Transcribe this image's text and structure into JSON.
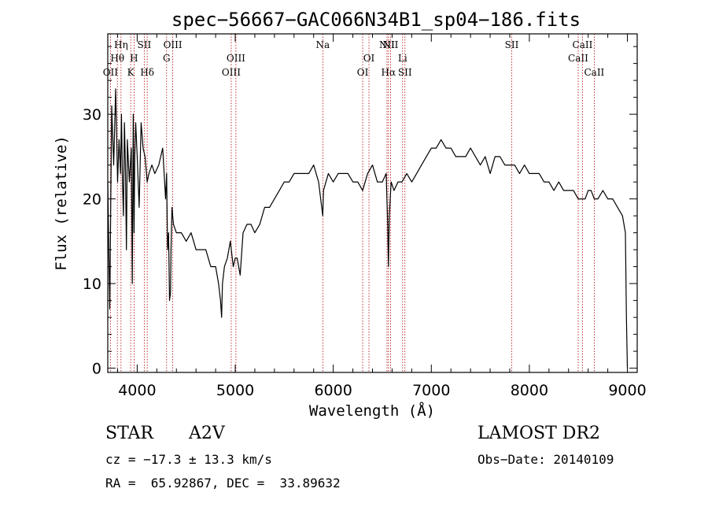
{
  "chart_data": {
    "type": "line",
    "title": "spec−56667−GAC066N34B1_sp04−186.fits",
    "xlabel": "Wavelength (Å)",
    "ylabel": "Flux (relative)",
    "xlim": [
      3700,
      9100
    ],
    "ylim": [
      -0.5,
      39.5
    ],
    "xticks": [
      4000,
      5000,
      6000,
      7000,
      8000,
      9000
    ],
    "yticks": [
      0,
      10,
      20,
      30
    ],
    "grid": false,
    "series": [
      {
        "color": "#000000",
        "x": [
          3700,
          3720,
          3740,
          3760,
          3780,
          3800,
          3815,
          3830,
          3840,
          3850,
          3860,
          3870,
          3880,
          3890,
          3900,
          3920,
          3940,
          3950,
          3960,
          3968,
          3975,
          3985,
          4000,
          4020,
          4040,
          4060,
          4080,
          4102,
          4120,
          4150,
          4180,
          4220,
          4260,
          4290,
          4300,
          4310,
          4320,
          4330,
          4340,
          4345,
          4355,
          4370,
          4400,
          4450,
          4500,
          4550,
          4600,
          4650,
          4700,
          4750,
          4800,
          4830,
          4850,
          4861,
          4870,
          4890,
          4920,
          4950,
          4980,
          5000,
          5020,
          5050,
          5080,
          5120,
          5160,
          5200,
          5250,
          5300,
          5350,
          5400,
          5450,
          5500,
          5550,
          5600,
          5650,
          5700,
          5750,
          5800,
          5850,
          5893,
          5900,
          5950,
          6000,
          6050,
          6100,
          6150,
          6200,
          6250,
          6300,
          6350,
          6400,
          6450,
          6500,
          6540,
          6555,
          6563,
          6572,
          6590,
          6620,
          6660,
          6700,
          6750,
          6800,
          6850,
          6900,
          6950,
          7000,
          7050,
          7100,
          7150,
          7200,
          7250,
          7300,
          7350,
          7400,
          7450,
          7500,
          7550,
          7600,
          7650,
          7700,
          7750,
          7800,
          7850,
          7900,
          7950,
          8000,
          8050,
          8100,
          8150,
          8200,
          8250,
          8300,
          8350,
          8400,
          8450,
          8498,
          8520,
          8542,
          8570,
          8600,
          8630,
          8662,
          8700,
          8750,
          8800,
          8850,
          8900,
          8950,
          8980,
          8990,
          9000
        ],
        "y": [
          22,
          7,
          31,
          24,
          33,
          22,
          27,
          23,
          30,
          22,
          18,
          29,
          24,
          14,
          27,
          22,
          26,
          10,
          30,
          16,
          25,
          29,
          25,
          19,
          29,
          26,
          25,
          22,
          23,
          24,
          23,
          24,
          26,
          20,
          23,
          14,
          16,
          8,
          9,
          14,
          19,
          17,
          16,
          16,
          15,
          16,
          14,
          14,
          14,
          12,
          12,
          10,
          8,
          6,
          10,
          12,
          13,
          15,
          12,
          13,
          13,
          11,
          16,
          17,
          17,
          16,
          17,
          19,
          19,
          20,
          21,
          22,
          22,
          23,
          23,
          23,
          23,
          24,
          22,
          18,
          21,
          23,
          22,
          23,
          23,
          23,
          22,
          22,
          21,
          23,
          24,
          22,
          22,
          23,
          17,
          12,
          18,
          22,
          21,
          22,
          22,
          23,
          22,
          23,
          24,
          25,
          26,
          26,
          27,
          26,
          26,
          25,
          25,
          25,
          26,
          25,
          24,
          25,
          23,
          25,
          25,
          24,
          24,
          24,
          23,
          24,
          23,
          23,
          23,
          22,
          22,
          21,
          22,
          21,
          21,
          21,
          20,
          20,
          20,
          20,
          21,
          21,
          20,
          20,
          21,
          20,
          20,
          19,
          18,
          16,
          6,
          0
        ]
      }
    ],
    "annotations": {
      "lines": [
        {
          "x": 3727,
          "label": "OII",
          "row": 3
        },
        {
          "x": 3798,
          "label": "Hθ",
          "row": 2
        },
        {
          "x": 3835,
          "label": "Hη",
          "row": 1
        },
        {
          "x": 3934,
          "label": "K",
          "row": 3
        },
        {
          "x": 3968,
          "label": "H",
          "row": 2
        },
        {
          "x": 4072,
          "label": "SII",
          "row": 1
        },
        {
          "x": 4102,
          "label": "Hδ",
          "row": 3
        },
        {
          "x": 4300,
          "label": "G",
          "row": 2
        },
        {
          "x": 4363,
          "label": "OIII",
          "row": 1
        },
        {
          "x": 4959,
          "label": "OIII",
          "row": 3
        },
        {
          "x": 5007,
          "label": "OIII",
          "row": 2
        },
        {
          "x": 5893,
          "label": "Na",
          "row": 1
        },
        {
          "x": 6300,
          "label": "OI",
          "row": 3
        },
        {
          "x": 6364,
          "label": "OI",
          "row": 2
        },
        {
          "x": 6548,
          "label": "NII",
          "row": 1
        },
        {
          "x": 6563,
          "label": "Hα",
          "row": 3
        },
        {
          "x": 6584,
          "label": "NII",
          "row": 1
        },
        {
          "x": 6707,
          "label": "Li",
          "row": 2
        },
        {
          "x": 6731,
          "label": "SII",
          "row": 3
        },
        {
          "x": 7820,
          "label": "SII",
          "row": 1
        },
        {
          "x": 8498,
          "label": "CaII",
          "row": 2
        },
        {
          "x": 8542,
          "label": "CaII",
          "row": 1
        },
        {
          "x": 8662,
          "label": "CaII",
          "row": 3
        }
      ],
      "line_color": "#b00000"
    }
  },
  "info": {
    "object_type": "STAR",
    "subclass": "A2V",
    "survey": "LAMOST DR2",
    "cz": "cz = −17.3 ± 13.3 km/s",
    "obs_date": "Obs−Date: 20140109",
    "coords": "RA =  65.92867, DEC =  33.89632"
  }
}
